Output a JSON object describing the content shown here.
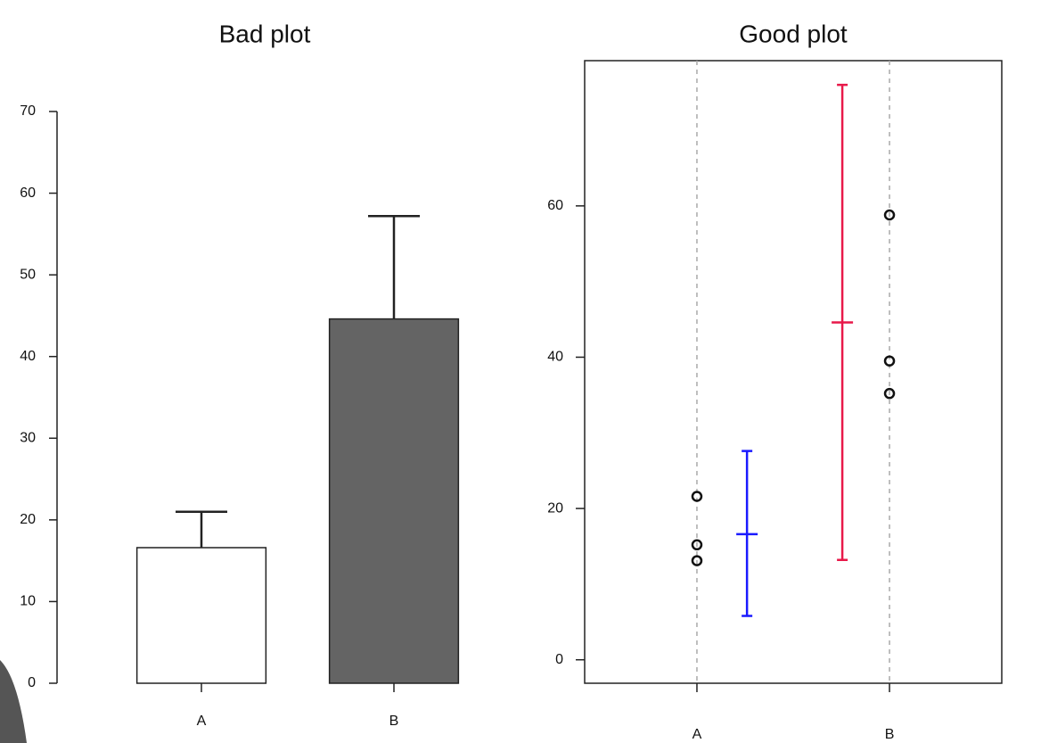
{
  "chart_data": [
    {
      "type": "bar",
      "title": "Bad plot",
      "categories": [
        "A",
        "B"
      ],
      "values": [
        16.6,
        44.6
      ],
      "errors": [
        4.4,
        12.6
      ],
      "colors": [
        "#ffffff",
        "#646464"
      ],
      "ylim": [
        0,
        70
      ],
      "yticks": [
        0,
        10,
        20,
        30,
        40,
        50,
        60,
        70
      ]
    },
    {
      "type": "scatter",
      "title": "Good plot",
      "x": [
        1,
        1,
        1,
        2,
        2,
        2
      ],
      "y": [
        21.6,
        15.2,
        13.1,
        58.8,
        39.5,
        35.2
      ],
      "intervals": [
        {
          "x": 1.26,
          "mean": 16.6,
          "lower": 5.8,
          "upper": 27.6,
          "color": "#1a1aff"
        },
        {
          "x": 1.755,
          "mean": 44.6,
          "lower": 13.2,
          "upper": 76.0,
          "color": "#e8194a"
        }
      ],
      "xlim": [
        0.417,
        2.583
      ],
      "ylim": [
        -3.1,
        79.2
      ],
      "xticks": [
        {
          "value": 1,
          "label": "A"
        },
        {
          "value": 2,
          "label": "B"
        }
      ],
      "yticks": [
        0,
        20,
        40,
        60
      ],
      "grid": true
    }
  ]
}
